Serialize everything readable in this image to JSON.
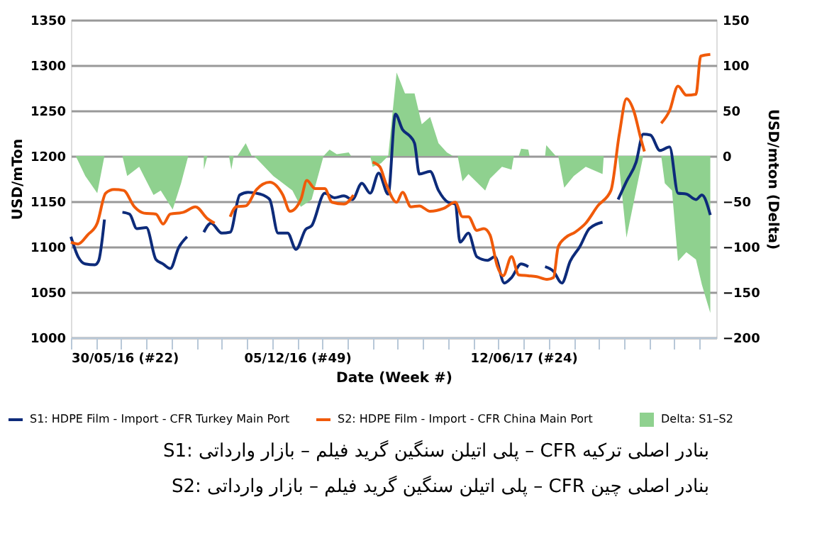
{
  "chart_data": {
    "type": "line",
    "xlabel": "Date (Week #)",
    "ylabel": "USD/mTon",
    "y2label": "USD/mton (Delta)",
    "xlim": [
      "2016-05-30",
      "2017-11-20"
    ],
    "xticks": [
      {
        "value": "2016-05-30",
        "label": "30/05/16 (#22)"
      },
      {
        "value": "2016-06-20",
        "label": null
      },
      {
        "value": "2016-07-11",
        "label": null
      },
      {
        "value": "2016-08-01",
        "label": null
      },
      {
        "value": "2016-08-22",
        "label": null
      },
      {
        "value": "2016-09-12",
        "label": null
      },
      {
        "value": "2016-10-03",
        "label": null
      },
      {
        "value": "2016-10-24",
        "label": null
      },
      {
        "value": "2016-11-14",
        "label": null
      },
      {
        "value": "2016-12-05",
        "label": "05/12/16 (#49)"
      },
      {
        "value": "2016-12-26",
        "label": null
      },
      {
        "value": "2017-01-16",
        "label": null
      },
      {
        "value": "2017-02-06",
        "label": null
      },
      {
        "value": "2017-02-27",
        "label": null
      },
      {
        "value": "2017-03-20",
        "label": null
      },
      {
        "value": "2017-04-10",
        "label": null
      },
      {
        "value": "2017-05-01",
        "label": null
      },
      {
        "value": "2017-05-22",
        "label": null
      },
      {
        "value": "2017-06-12",
        "label": "12/06/17 (#24)"
      },
      {
        "value": "2017-07-03",
        "label": null
      },
      {
        "value": "2017-07-24",
        "label": null
      },
      {
        "value": "2017-08-14",
        "label": null
      },
      {
        "value": "2017-09-04",
        "label": null
      },
      {
        "value": "2017-09-25",
        "label": null
      },
      {
        "value": "2017-10-16",
        "label": null
      },
      {
        "value": "2017-11-06",
        "label": null
      }
    ],
    "ylim": [
      1000,
      1350
    ],
    "yticks": [
      1000,
      1050,
      1100,
      1150,
      1200,
      1250,
      1300,
      1350
    ],
    "y2lim": [
      -200,
      150
    ],
    "y2ticks": [
      -200,
      -150,
      -100,
      -50,
      0,
      50,
      100,
      150
    ],
    "grid": "y",
    "legend": "bottom",
    "marker": "none",
    "line_style": "solid",
    "annotations": [
      "S1: پلی اتیلن سنگین گرید فیلم – بازار وارداتی – CFR بنادر اصلی ترکیه",
      "S2: پلی اتیلن سنگین گرید فیلم – بازار وارداتی – CFR بنادر اصلی چین"
    ],
    "series": [
      {
        "name": "Delta: S1–S2",
        "type": "area",
        "axis": "y2",
        "color": "#8fd18f",
        "x": [
          "2016-06-03",
          "2016-06-11",
          "2016-06-21",
          "2016-06-27",
          "2016-07-04",
          "2016-07-12",
          "2016-07-16",
          "2016-07-26",
          "2016-08-07",
          "2016-08-13",
          "2016-08-23",
          "2016-08-30",
          "2016-09-05",
          "2016-09-11",
          "2016-09-18",
          "2016-09-21",
          "2016-09-29",
          "2016-10-09",
          "2016-10-11",
          "2016-10-13",
          "2016-10-16",
          "2016-10-23",
          "2016-10-28",
          "2016-10-30",
          "2016-11-15",
          "2016-12-01",
          "2016-12-08",
          "2016-12-17",
          "2016-12-27",
          "2017-01-01",
          "2017-01-07",
          "2017-01-17",
          "2017-01-19",
          "2017-01-27",
          "2017-02-04",
          "2017-02-06",
          "2017-02-13",
          "2017-02-19",
          "2017-02-26",
          "2017-03-05",
          "2017-03-13",
          "2017-03-19",
          "2017-03-26",
          "2017-04-02",
          "2017-04-09",
          "2017-04-14",
          "2017-04-18",
          "2017-04-22",
          "2017-04-27",
          "2017-05-11",
          "2017-05-15",
          "2017-05-25",
          "2017-06-02",
          "2017-06-04",
          "2017-06-08",
          "2017-06-10",
          "2017-06-16",
          "2017-06-17",
          "2017-06-23",
          "2017-06-30",
          "2017-07-01",
          "2017-07-07",
          "2017-07-09",
          "2017-07-11",
          "2017-07-16",
          "2017-07-24",
          "2017-08-03",
          "2017-08-17",
          "2017-08-18",
          "2017-08-24",
          "2017-08-30",
          "2017-09-06",
          "2017-09-14",
          "2017-09-20",
          "2017-09-27",
          "2017-10-05",
          "2017-10-08",
          "2017-10-14",
          "2017-10-19",
          "2017-10-26",
          "2017-11-03",
          "2017-11-08",
          "2017-11-15"
        ],
        "values": [
          0,
          -22,
          -41,
          0,
          null,
          0,
          -22,
          -12,
          -43,
          -38,
          -59,
          -30,
          0,
          null,
          -15,
          0,
          null,
          0,
          -15,
          0,
          0,
          14,
          0,
          0,
          -22,
          -38,
          -56,
          -48,
          0,
          7,
          2,
          4,
          0,
          null,
          0,
          -12,
          -8,
          0,
          92,
          69,
          69,
          35,
          43,
          14,
          4,
          0,
          0,
          -28,
          -20,
          -38,
          -25,
          -12,
          -15,
          0,
          0,
          8,
          7,
          0,
          null,
          0,
          12,
          3,
          0,
          0,
          -35,
          -22,
          -12,
          -20,
          0,
          null,
          0,
          -90,
          -38,
          0,
          null,
          0,
          -30,
          -38,
          -116,
          -106,
          -114,
          -142,
          -173
        ]
      },
      {
        "name": "S1: HDPE Film - Import - CFR Turkey Main Port",
        "type": "line",
        "color": "#0d2b7a",
        "x": [
          "2016-05-30",
          "2016-06-05",
          "2016-06-11",
          "2016-06-19",
          "2016-06-22",
          "2016-06-27",
          "2016-07-04",
          "2016-07-12",
          "2016-07-18",
          "2016-07-24",
          "2016-08-01",
          "2016-08-09",
          "2016-08-15",
          "2016-08-21",
          "2016-08-28",
          "2016-09-04",
          "2016-09-11",
          "2016-09-18",
          "2016-09-24",
          "2016-10-03",
          "2016-10-10",
          "2016-10-18",
          "2016-10-25",
          "2016-11-04",
          "2016-11-12",
          "2016-11-19",
          "2016-11-27",
          "2016-12-04",
          "2016-12-12",
          "2016-12-17",
          "2016-12-28",
          "2017-01-05",
          "2017-01-13",
          "2017-01-20",
          "2017-01-28",
          "2017-02-04",
          "2017-02-11",
          "2017-02-19",
          "2017-02-25",
          "2017-03-03",
          "2017-03-09",
          "2017-03-13",
          "2017-03-17",
          "2017-03-26",
          "2017-04-02",
          "2017-04-10",
          "2017-04-16",
          "2017-04-20",
          "2017-04-27",
          "2017-05-04",
          "2017-05-13",
          "2017-05-19",
          "2017-05-27",
          "2017-06-02",
          "2017-06-10",
          "2017-06-16",
          "2017-06-22",
          "2017-06-30",
          "2017-07-07",
          "2017-07-14",
          "2017-07-21",
          "2017-07-29",
          "2017-08-06",
          "2017-08-17",
          "2017-08-24",
          "2017-08-30",
          "2017-09-06",
          "2017-09-14",
          "2017-09-20",
          "2017-09-26",
          "2017-10-04",
          "2017-10-12",
          "2017-10-19",
          "2017-10-26",
          "2017-11-03",
          "2017-11-08",
          "2017-11-15"
        ],
        "values": [
          1111,
          1089,
          1081,
          1080,
          1084,
          1130,
          null,
          1138,
          1136,
          1120,
          1121,
          1086,
          1081,
          1076,
          1099,
          1111,
          null,
          1116,
          1126,
          1115,
          1116,
          1157,
          1160,
          1158,
          1152,
          1115,
          1115,
          1097,
          1119,
          1123,
          1159,
          1154,
          1156,
          1152,
          1170,
          1159,
          1181,
          1158,
          1246,
          1229,
          1222,
          1214,
          1180,
          1183,
          1162,
          1149,
          1147,
          1105,
          1115,
          1089,
          1085,
          1089,
          1060,
          1066,
          1081,
          1078,
          null,
          1078,
          1073,
          1060,
          1084,
          1100,
          1120,
          1127,
          null,
          1152,
          1172,
          1193,
          1224,
          1223,
          1206,
          1210,
          1159,
          1158,
          1152,
          1157,
          1135
        ]
      },
      {
        "name": "S2: HDPE Film - Import - CFR China Main Port",
        "type": "line",
        "color": "#f05a0a",
        "x": [
          "2016-05-30",
          "2016-06-05",
          "2016-06-13",
          "2016-06-21",
          "2016-06-28",
          "2016-07-05",
          "2016-07-13",
          "2016-07-22",
          "2016-07-30",
          "2016-08-09",
          "2016-08-15",
          "2016-08-21",
          "2016-09-01",
          "2016-09-11",
          "2016-09-21",
          "2016-09-27",
          "2016-10-03",
          "2016-10-10",
          "2016-10-15",
          "2016-10-23",
          "2016-11-01",
          "2016-11-12",
          "2016-11-23",
          "2016-11-29",
          "2016-12-08",
          "2016-12-13",
          "2016-12-20",
          "2016-12-28",
          "2017-01-03",
          "2017-01-13",
          "2017-01-21",
          "2017-01-29",
          "2017-02-06",
          "2017-02-12",
          "2017-02-17",
          "2017-02-26",
          "2017-03-03",
          "2017-03-10",
          "2017-03-17",
          "2017-03-26",
          "2017-04-06",
          "2017-04-16",
          "2017-04-22",
          "2017-04-27",
          "2017-05-04",
          "2017-05-10",
          "2017-05-15",
          "2017-05-21",
          "2017-05-26",
          "2017-06-02",
          "2017-06-08",
          "2017-06-16",
          "2017-06-23",
          "2017-07-02",
          "2017-07-07",
          "2017-07-11",
          "2017-07-17",
          "2017-07-25",
          "2017-08-03",
          "2017-08-13",
          "2017-08-24",
          "2017-08-31",
          "2017-09-06",
          "2017-09-12",
          "2017-09-18",
          "2017-09-21",
          "2017-09-28",
          "2017-10-05",
          "2017-10-12",
          "2017-10-19",
          "2017-10-26",
          "2017-11-03",
          "2017-11-07",
          "2017-11-15"
        ],
        "values": [
          1105,
          1103,
          1113,
          1126,
          1159,
          1163,
          1162,
          1144,
          1137,
          1136,
          1125,
          1136,
          1138,
          1144,
          1131,
          1126,
          null,
          1133,
          1144,
          1145,
          1163,
          1171,
          1157,
          1139,
          1152,
          1173,
          1164,
          1164,
          1149,
          1147,
          1157,
          null,
          1193,
          1188,
          1170,
          1149,
          1160,
          1144,
          1145,
          1139,
          1142,
          1149,
          1133,
          1133,
          1118,
          1120,
          1113,
          1079,
          1068,
          1089,
          1069,
          1068,
          1067,
          1064,
          1066,
          1100,
          1110,
          1116,
          1126,
          1145,
          1162,
          1224,
          1263,
          1250,
          1219,
          1205,
          null,
          1236,
          1250,
          1277,
          1267,
          1268,
          1310,
          1312
        ]
      }
    ]
  }
}
